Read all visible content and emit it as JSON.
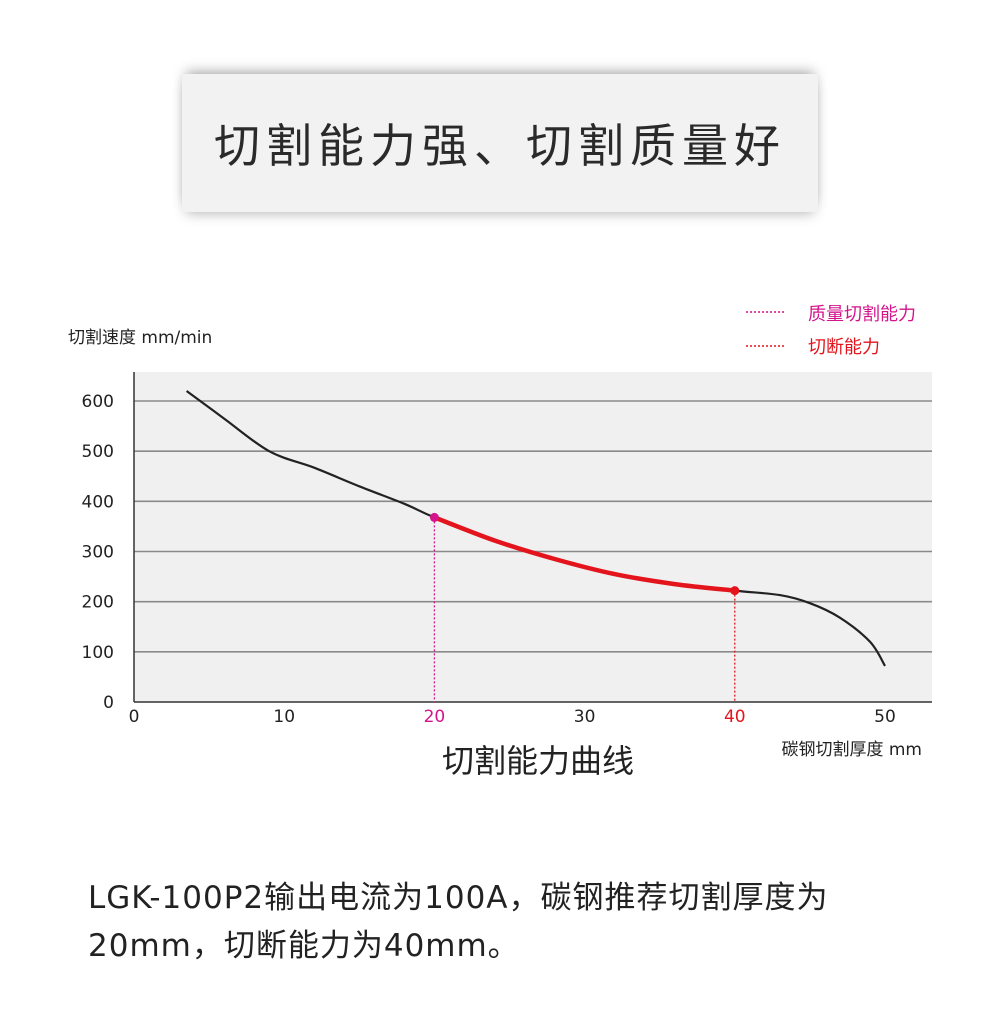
{
  "banner": {
    "title": "切割能力强、切割质量好"
  },
  "chart_data": {
    "type": "line",
    "title": "切割能力曲线",
    "xlabel": "碳钢切割厚度 mm",
    "ylabel": "切割速度 mm/min",
    "xlim": [
      0,
      50
    ],
    "ylim": [
      0,
      600
    ],
    "x_ticks": [
      "0",
      "10",
      "20",
      "30",
      "40",
      "50"
    ],
    "y_ticks": [
      "0",
      "100",
      "200",
      "300",
      "400",
      "500",
      "600"
    ],
    "grid": "horizontal",
    "legend_position": "top-right",
    "legend": [
      {
        "label": "质量切割能力",
        "color": "#d4148c"
      },
      {
        "label": "切断能力",
        "color": "#e3141b"
      }
    ],
    "curve": {
      "color": "#222222",
      "points": [
        [
          3.5,
          620
        ],
        [
          6,
          565
        ],
        [
          9,
          500
        ],
        [
          12,
          467
        ],
        [
          15,
          430
        ],
        [
          18,
          395
        ],
        [
          20,
          368
        ],
        [
          24,
          322
        ],
        [
          28,
          285
        ],
        [
          32,
          255
        ],
        [
          36,
          235
        ],
        [
          40,
          222
        ],
        [
          43,
          213
        ],
        [
          45,
          197
        ],
        [
          47,
          168
        ],
        [
          49,
          120
        ],
        [
          50,
          72
        ]
      ]
    },
    "highlight": {
      "color": "#e3141b",
      "x_range": [
        20,
        40
      ]
    },
    "markers": [
      {
        "x": 20,
        "y": 368,
        "color": "#d4148c",
        "label": "20"
      },
      {
        "x": 40,
        "y": 222,
        "color": "#e3141b",
        "label": "40"
      }
    ]
  },
  "caption": {
    "line1": "LGK-100P2输出电流为100A，碳钢推荐切割厚度为",
    "line2": "20mm，切断能力为40mm。"
  }
}
